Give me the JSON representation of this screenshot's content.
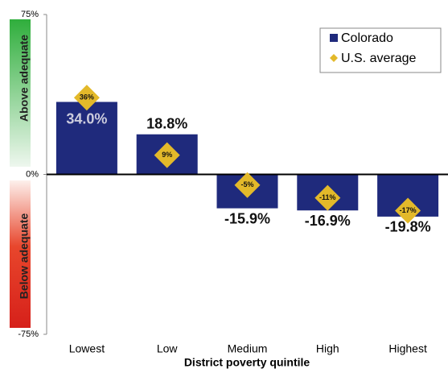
{
  "chart_data": {
    "type": "bar",
    "x_label": "District poverty quintile",
    "annotations": {
      "above": "Above adequate",
      "below": "Below adequate"
    },
    "categories": [
      "Lowest",
      "Low",
      "Medium",
      "High",
      "Highest"
    ],
    "series": [
      {
        "name": "Colorado",
        "color": "#1f2a7c",
        "marker": "bar",
        "values": [
          34.0,
          18.8,
          -15.9,
          -16.9,
          -19.8
        ],
        "value_labels": [
          "34.0%",
          "18.8%",
          "-15.9%",
          "-16.9%",
          "-19.8%"
        ]
      },
      {
        "name": "U.S. average",
        "color": "#e3b92a",
        "marker": "diamond",
        "values": [
          36,
          9,
          -5,
          -11,
          -17
        ],
        "value_labels": [
          "36%",
          "9%",
          "-5%",
          "-11%",
          "-17%"
        ]
      }
    ],
    "ylim": [
      -75,
      75
    ],
    "yticks": [
      {
        "value": -75,
        "label": "-75%"
      },
      {
        "value": 0,
        "label": "0%"
      },
      {
        "value": 75,
        "label": "75%"
      }
    ],
    "legend": "top-right"
  }
}
